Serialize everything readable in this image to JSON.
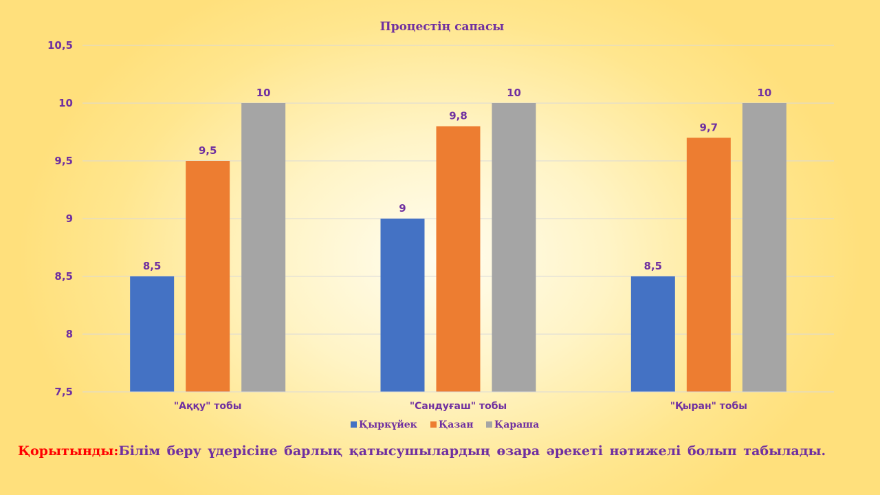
{
  "chart_data": {
    "type": "bar",
    "title": "Процестің сапасы",
    "categories": [
      "\"Аққу\" тобы",
      "\"Сандуғаш\" тобы",
      "\"Қыран\" тобы"
    ],
    "series": [
      {
        "name": "Қыркүйек",
        "values": [
          8.5,
          9,
          8.5
        ],
        "labels": [
          "8,5",
          "9",
          "8,5"
        ],
        "color": "#4472c4"
      },
      {
        "name": "Қазан",
        "values": [
          9.5,
          9.8,
          9.7
        ],
        "labels": [
          "9,5",
          "9,8",
          "9,7"
        ],
        "color": "#ed7d31"
      },
      {
        "name": "Қараша",
        "values": [
          10,
          10,
          10
        ],
        "labels": [
          "10",
          "10",
          "10"
        ],
        "color": "#a5a5a5"
      }
    ],
    "ylim": [
      7.5,
      10.5
    ],
    "yticks": [
      7.5,
      8,
      8.5,
      9,
      9.5,
      10,
      10.5
    ],
    "ytick_labels": [
      "7,5",
      "8",
      "8,5",
      "9",
      "9,5",
      "10",
      "10,5"
    ],
    "grid": true,
    "legend_position": "bottom",
    "text_color": "#7030a0",
    "grid_color": "#d9d9d9"
  },
  "conclusion": {
    "lead": "Қорытынды:",
    "text": "Білім беру үдерісіне барлық қатысушылардың өзара әрекеті нәтижелі болып табылады.",
    "lead_color": "#ff0000",
    "text_color": "#7030a0"
  }
}
